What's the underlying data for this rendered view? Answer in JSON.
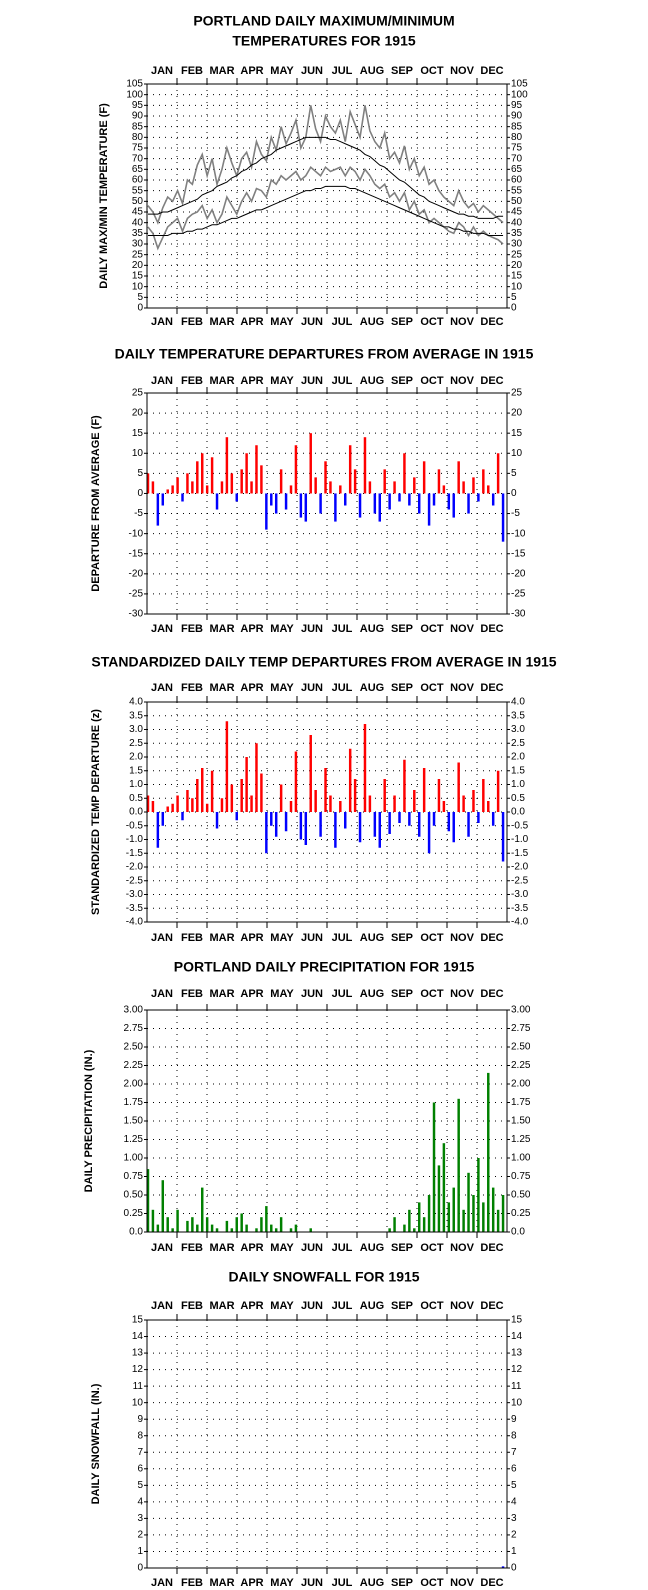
{
  "chart_data": [
    {
      "type": "line",
      "title": [
        "PORTLAND DAILY MAXIMUM/MINIMUM",
        "TEMPERATURES FOR 1915"
      ],
      "ylabel": "DAILY MAX/MIN TEMPERATURE (F)",
      "categories": [
        "JAN",
        "FEB",
        "MAR",
        "APR",
        "MAY",
        "JUN",
        "JUL",
        "AUG",
        "SEP",
        "OCT",
        "NOV",
        "DEC"
      ],
      "xlim": [
        0,
        365
      ],
      "x": [
        1,
        6,
        11,
        16,
        21,
        26,
        31,
        36,
        41,
        46,
        51,
        56,
        61,
        66,
        71,
        76,
        81,
        86,
        91,
        96,
        101,
        106,
        111,
        116,
        121,
        126,
        131,
        136,
        141,
        146,
        151,
        156,
        161,
        166,
        171,
        176,
        181,
        186,
        191,
        196,
        201,
        206,
        211,
        216,
        221,
        226,
        231,
        236,
        241,
        246,
        251,
        256,
        261,
        266,
        271,
        276,
        281,
        286,
        291,
        296,
        301,
        306,
        311,
        316,
        321,
        326,
        331,
        336,
        341,
        346,
        351,
        356,
        361
      ],
      "ylim": [
        0,
        105
      ],
      "yticks": [
        0,
        5,
        10,
        15,
        20,
        25,
        30,
        35,
        40,
        45,
        50,
        55,
        60,
        65,
        70,
        75,
        80,
        85,
        90,
        95,
        100,
        105
      ],
      "grid": true,
      "series": [
        {
          "color": "#808080",
          "values": [
            48,
            45,
            40,
            47,
            52,
            50,
            55,
            49,
            60,
            58,
            67,
            72,
            62,
            70,
            58,
            65,
            75,
            68,
            62,
            70,
            73,
            66,
            78,
            72,
            69,
            80,
            74,
            85,
            77,
            82,
            88,
            75,
            80,
            95,
            84,
            78,
            90,
            85,
            82,
            88,
            78,
            92,
            86,
            80,
            95,
            83,
            78,
            75,
            82,
            70,
            73,
            68,
            76,
            65,
            70,
            62,
            66,
            58,
            60,
            55,
            52,
            50,
            48,
            55,
            50,
            47,
            49,
            45,
            48,
            46,
            44,
            42,
            40
          ]
        },
        {
          "color": "#808080",
          "values": [
            38,
            35,
            28,
            33,
            38,
            40,
            42,
            36,
            42,
            44,
            45,
            48,
            42,
            46,
            40,
            44,
            52,
            48,
            44,
            50,
            54,
            50,
            56,
            55,
            52,
            60,
            58,
            62,
            60,
            62,
            64,
            60,
            62,
            66,
            64,
            62,
            66,
            64,
            65,
            66,
            62,
            66,
            64,
            60,
            65,
            62,
            58,
            56,
            58,
            52,
            54,
            50,
            54,
            46,
            50,
            44,
            46,
            40,
            42,
            40,
            38,
            36,
            35,
            40,
            38,
            34,
            38,
            34,
            36,
            34,
            33,
            32,
            30
          ]
        },
        {
          "color": "#000000",
          "values": [
            44,
            44,
            44,
            45,
            45,
            46,
            47,
            48,
            49,
            50,
            51,
            53,
            54,
            55,
            57,
            58,
            59,
            61,
            62,
            64,
            65,
            67,
            68,
            70,
            71,
            72,
            74,
            75,
            76,
            77,
            78,
            79,
            80,
            80,
            80,
            80,
            80,
            79,
            79,
            78,
            77,
            76,
            75,
            74,
            72,
            71,
            69,
            67,
            66,
            64,
            62,
            60,
            59,
            57,
            55,
            53,
            52,
            50,
            49,
            48,
            47,
            46,
            45,
            44,
            44,
            43,
            43,
            42,
            42,
            42,
            42,
            43,
            43
          ]
        },
        {
          "color": "#000000",
          "values": [
            34,
            34,
            34,
            34,
            34,
            35,
            35,
            35,
            36,
            36,
            37,
            37,
            38,
            39,
            39,
            40,
            41,
            42,
            42,
            43,
            44,
            45,
            46,
            46,
            47,
            48,
            49,
            50,
            51,
            52,
            53,
            54,
            55,
            55,
            56,
            56,
            57,
            57,
            57,
            57,
            57,
            56,
            56,
            55,
            54,
            53,
            52,
            51,
            50,
            49,
            48,
            47,
            46,
            45,
            44,
            43,
            42,
            41,
            40,
            39,
            38,
            38,
            37,
            37,
            36,
            36,
            35,
            35,
            35,
            34,
            34,
            34,
            34
          ]
        }
      ]
    },
    {
      "type": "diverging",
      "title": [
        "DAILY TEMPERATURE DEPARTURES FROM AVERAGE IN 1915"
      ],
      "ylabel": "DEPARTURE FROM AVERAGE (F)",
      "categories": [
        "JAN",
        "FEB",
        "MAR",
        "APR",
        "MAY",
        "JUN",
        "JUL",
        "AUG",
        "SEP",
        "OCT",
        "NOV",
        "DEC"
      ],
      "xlim": [
        0,
        365
      ],
      "x": [
        1,
        6,
        11,
        16,
        21,
        26,
        31,
        36,
        41,
        46,
        51,
        56,
        61,
        66,
        71,
        76,
        81,
        86,
        91,
        96,
        101,
        106,
        111,
        116,
        121,
        126,
        131,
        136,
        141,
        146,
        151,
        156,
        161,
        166,
        171,
        176,
        181,
        186,
        191,
        196,
        201,
        206,
        211,
        216,
        221,
        226,
        231,
        236,
        241,
        246,
        251,
        256,
        261,
        266,
        271,
        276,
        281,
        286,
        291,
        296,
        301,
        306,
        311,
        316,
        321,
        326,
        331,
        336,
        341,
        346,
        351,
        356,
        361
      ],
      "ylim": [
        -30,
        25
      ],
      "yticks": [
        -30,
        -25,
        -20,
        -15,
        -10,
        -5,
        0,
        5,
        10,
        15,
        20,
        25
      ],
      "grid": true,
      "colors": {
        "positive": "#ff0000",
        "negative": "#0000ff"
      },
      "values": [
        5,
        3,
        -8,
        -3,
        1,
        2,
        4,
        -2,
        5,
        3,
        8,
        10,
        2,
        9,
        -4,
        3,
        14,
        5,
        -2,
        6,
        10,
        3,
        12,
        7,
        -9,
        -3,
        -5,
        6,
        -4,
        2,
        12,
        -6,
        -7,
        15,
        4,
        -5,
        8,
        3,
        -7,
        2,
        -3,
        12,
        6,
        -6,
        14,
        3,
        -5,
        -7,
        6,
        -4,
        3,
        -2,
        10,
        -3,
        4,
        -5,
        8,
        -8,
        -3,
        6,
        2,
        -4,
        -6,
        8,
        3,
        -5,
        4,
        -2,
        6,
        2,
        -3,
        10,
        -12
      ]
    },
    {
      "type": "diverging",
      "title": [
        "STANDARDIZED DAILY TEMP DEPARTURES FROM AVERAGE IN 1915"
      ],
      "ylabel": "STANDARDIZED TEMP DEPARTURE (z)",
      "categories": [
        "JAN",
        "FEB",
        "MAR",
        "APR",
        "MAY",
        "JUN",
        "JUL",
        "AUG",
        "SEP",
        "OCT",
        "NOV",
        "DEC"
      ],
      "xlim": [
        0,
        365
      ],
      "x": [
        1,
        6,
        11,
        16,
        21,
        26,
        31,
        36,
        41,
        46,
        51,
        56,
        61,
        66,
        71,
        76,
        81,
        86,
        91,
        96,
        101,
        106,
        111,
        116,
        121,
        126,
        131,
        136,
        141,
        146,
        151,
        156,
        161,
        166,
        171,
        176,
        181,
        186,
        191,
        196,
        201,
        206,
        211,
        216,
        221,
        226,
        231,
        236,
        241,
        246,
        251,
        256,
        261,
        266,
        271,
        276,
        281,
        286,
        291,
        296,
        301,
        306,
        311,
        316,
        321,
        326,
        331,
        336,
        341,
        346,
        351,
        356,
        361
      ],
      "ylim": [
        -4,
        4
      ],
      "yticks": [
        {
          "value": -4,
          "label": "-4.0"
        },
        {
          "value": -3.5,
          "label": "-3.5"
        },
        {
          "value": -3,
          "label": "-3.0"
        },
        {
          "value": -2.5,
          "label": "-2.5"
        },
        {
          "value": -2,
          "label": "-2.0"
        },
        {
          "value": -1.5,
          "label": "-1.5"
        },
        {
          "value": -1,
          "label": "-1.0"
        },
        {
          "value": -0.5,
          "label": "-0.5"
        },
        {
          "value": 0,
          "label": "0.0"
        },
        {
          "value": 0.5,
          "label": "0.5"
        },
        {
          "value": 1,
          "label": "1.0"
        },
        {
          "value": 1.5,
          "label": "1.5"
        },
        {
          "value": 2,
          "label": "2.0"
        },
        {
          "value": 2.5,
          "label": "2.5"
        },
        {
          "value": 3,
          "label": "3.0"
        },
        {
          "value": 3.5,
          "label": "3.5"
        },
        {
          "value": 4,
          "label": "4.0"
        }
      ],
      "grid": true,
      "colors": {
        "positive": "#ff0000",
        "negative": "#0000ff"
      },
      "values": [
        0.6,
        0.4,
        -1.3,
        -0.5,
        0.2,
        0.3,
        0.6,
        -0.3,
        0.8,
        0.5,
        1.2,
        1.6,
        0.3,
        1.5,
        -0.6,
        0.5,
        3.3,
        1.0,
        -0.3,
        1.2,
        2.0,
        0.6,
        2.5,
        1.4,
        -1.5,
        -0.5,
        -0.9,
        1.0,
        -0.7,
        0.4,
        2.2,
        -1.0,
        -1.2,
        2.8,
        0.8,
        -0.9,
        1.6,
        0.6,
        -1.3,
        0.4,
        -0.6,
        2.3,
        1.2,
        -1.1,
        3.2,
        0.6,
        -0.9,
        -1.3,
        1.2,
        -0.8,
        0.6,
        -0.4,
        1.9,
        -0.5,
        0.8,
        -0.9,
        1.6,
        -1.5,
        -0.5,
        1.2,
        0.4,
        -0.7,
        -1.1,
        1.8,
        0.6,
        -0.9,
        0.8,
        -0.4,
        1.2,
        0.4,
        -0.5,
        1.5,
        -1.8
      ]
    },
    {
      "type": "bar",
      "title": [
        "PORTLAND DAILY PRECIPITATION FOR 1915"
      ],
      "ylabel": "DAILY PRECIPITATION (IN.)",
      "categories": [
        "JAN",
        "FEB",
        "MAR",
        "APR",
        "MAY",
        "JUN",
        "JUL",
        "AUG",
        "SEP",
        "OCT",
        "NOV",
        "DEC"
      ],
      "xlim": [
        0,
        365
      ],
      "x": [
        1,
        6,
        11,
        16,
        21,
        26,
        31,
        36,
        41,
        46,
        51,
        56,
        61,
        66,
        71,
        76,
        81,
        86,
        91,
        96,
        101,
        106,
        111,
        116,
        121,
        126,
        131,
        136,
        141,
        146,
        151,
        156,
        161,
        166,
        171,
        176,
        181,
        186,
        191,
        196,
        201,
        206,
        211,
        216,
        221,
        226,
        231,
        236,
        241,
        246,
        251,
        256,
        261,
        266,
        271,
        276,
        281,
        286,
        291,
        296,
        301,
        306,
        311,
        316,
        321,
        326,
        331,
        336,
        341,
        346,
        351,
        356,
        361
      ],
      "ylim": [
        0,
        3
      ],
      "yticks": [
        {
          "value": 0,
          "label": "0.0"
        },
        {
          "value": 0.25,
          "label": "0.25"
        },
        {
          "value": 0.5,
          "label": "0.50"
        },
        {
          "value": 0.75,
          "label": "0.75"
        },
        {
          "value": 1,
          "label": "1.00"
        },
        {
          "value": 1.25,
          "label": "1.25"
        },
        {
          "value": 1.5,
          "label": "1.50"
        },
        {
          "value": 1.75,
          "label": "1.75"
        },
        {
          "value": 2,
          "label": "2.00"
        },
        {
          "value": 2.25,
          "label": "2.25"
        },
        {
          "value": 2.5,
          "label": "2.50"
        },
        {
          "value": 2.75,
          "label": "2.75"
        },
        {
          "value": 3,
          "label": "3.00"
        }
      ],
      "grid": true,
      "color": "#008000",
      "values": [
        0.85,
        0.3,
        0.1,
        0.7,
        0.2,
        0.05,
        0.3,
        0,
        0.15,
        0.2,
        0.1,
        0.6,
        0.2,
        0.1,
        0.05,
        0,
        0.15,
        0.05,
        0.2,
        0.25,
        0.1,
        0,
        0.05,
        0.2,
        0.35,
        0.1,
        0.05,
        0.2,
        0,
        0.05,
        0.1,
        0,
        0,
        0.05,
        0,
        0,
        0,
        0,
        0,
        0,
        0,
        0,
        0,
        0,
        0,
        0,
        0,
        0,
        0,
        0.05,
        0.2,
        0,
        0.1,
        0.3,
        0.05,
        0.4,
        0.2,
        0.5,
        1.75,
        0.9,
        1.2,
        0.4,
        0.6,
        1.8,
        0.3,
        0.8,
        0.5,
        1.0,
        0.4,
        2.15,
        0.6,
        0.3,
        0.5
      ]
    },
    {
      "type": "bar",
      "title": [
        "DAILY SNOWFALL FOR 1915"
      ],
      "ylabel": "DAILY SNOWFALL (IN.)",
      "categories": [
        "JAN",
        "FEB",
        "MAR",
        "APR",
        "MAY",
        "JUN",
        "JUL",
        "AUG",
        "SEP",
        "OCT",
        "NOV",
        "DEC"
      ],
      "xlim": [
        0,
        365
      ],
      "x": [
        1,
        6,
        11,
        16,
        21,
        26,
        31,
        36,
        41,
        46,
        51,
        56,
        61,
        66,
        71,
        76,
        81,
        86,
        91,
        96,
        101,
        106,
        111,
        116,
        121,
        126,
        131,
        136,
        141,
        146,
        151,
        156,
        161,
        166,
        171,
        176,
        181,
        186,
        191,
        196,
        201,
        206,
        211,
        216,
        221,
        226,
        231,
        236,
        241,
        246,
        251,
        256,
        261,
        266,
        271,
        276,
        281,
        286,
        291,
        296,
        301,
        306,
        311,
        316,
        321,
        326,
        331,
        336,
        341,
        346,
        351,
        356,
        361
      ],
      "ylim": [
        0,
        15
      ],
      "yticks": [
        0,
        1,
        2,
        3,
        4,
        5,
        6,
        7,
        8,
        9,
        10,
        11,
        12,
        13,
        14,
        15
      ],
      "grid": true,
      "color": "#0000ff",
      "values": [
        0,
        0,
        0,
        0,
        0,
        0,
        0,
        0,
        0,
        0,
        0,
        0,
        0,
        0,
        0,
        0,
        0,
        0,
        0,
        0,
        0,
        0,
        0,
        0,
        0,
        0,
        0,
        0,
        0,
        0,
        0,
        0,
        0,
        0,
        0,
        0,
        0,
        0,
        0,
        0,
        0,
        0,
        0,
        0,
        0,
        0,
        0,
        0,
        0,
        0,
        0,
        0,
        0,
        0,
        0,
        0,
        0,
        0,
        0,
        0,
        0,
        0,
        0,
        0,
        0,
        0,
        0,
        0,
        0,
        0,
        0,
        0,
        0.1
      ]
    }
  ]
}
